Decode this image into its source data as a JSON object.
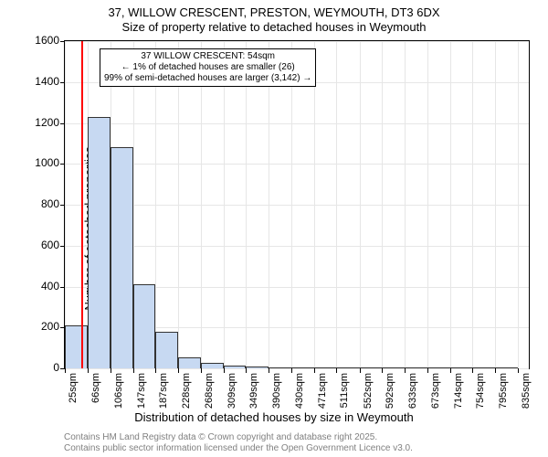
{
  "title": {
    "line1": "37, WILLOW CRESCENT, PRESTON, WEYMOUTH, DT3 6DX",
    "line2": "Size of property relative to detached houses in Weymouth"
  },
  "ylabel": "Number of detached properties",
  "xlabel": "Distribution of detached houses by size in Weymouth",
  "footer": {
    "line1": "Contains HM Land Registry data © Crown copyright and database right 2025.",
    "line2": "Contains public sector information licensed under the Open Government Licence v3.0."
  },
  "chart": {
    "type": "histogram",
    "xlim": [
      25,
      855
    ],
    "ylim": [
      0,
      1600
    ],
    "ytick_step": 200,
    "yticks": [
      0,
      200,
      400,
      600,
      800,
      1000,
      1200,
      1400,
      1600
    ],
    "xticks": [
      25,
      66,
      106,
      147,
      187,
      228,
      268,
      309,
      349,
      390,
      430,
      471,
      511,
      552,
      592,
      633,
      673,
      714,
      754,
      795,
      835
    ],
    "xtick_labels": [
      "25sqm",
      "66sqm",
      "106sqm",
      "147sqm",
      "187sqm",
      "228sqm",
      "268sqm",
      "309sqm",
      "349sqm",
      "390sqm",
      "430sqm",
      "471sqm",
      "511sqm",
      "552sqm",
      "592sqm",
      "633sqm",
      "673sqm",
      "714sqm",
      "754sqm",
      "795sqm",
      "835sqm"
    ],
    "bars": [
      {
        "x0": 25,
        "x1": 66,
        "y": 210
      },
      {
        "x0": 66,
        "x1": 106,
        "y": 1230
      },
      {
        "x0": 106,
        "x1": 147,
        "y": 1080
      },
      {
        "x0": 147,
        "x1": 187,
        "y": 410
      },
      {
        "x0": 187,
        "x1": 228,
        "y": 180
      },
      {
        "x0": 228,
        "x1": 268,
        "y": 55
      },
      {
        "x0": 268,
        "x1": 309,
        "y": 25
      },
      {
        "x0": 309,
        "x1": 349,
        "y": 15
      },
      {
        "x0": 349,
        "x1": 390,
        "y": 8
      },
      {
        "x0": 390,
        "x1": 430,
        "y": 4
      },
      {
        "x0": 430,
        "x1": 471,
        "y": 2
      },
      {
        "x0": 471,
        "x1": 511,
        "y": 2
      },
      {
        "x0": 511,
        "x1": 552,
        "y": 1
      },
      {
        "x0": 552,
        "x1": 592,
        "y": 1
      },
      {
        "x0": 592,
        "x1": 633,
        "y": 1
      },
      {
        "x0": 633,
        "x1": 673,
        "y": 0
      },
      {
        "x0": 673,
        "x1": 714,
        "y": 0
      },
      {
        "x0": 714,
        "x1": 754,
        "y": 0
      },
      {
        "x0": 754,
        "x1": 795,
        "y": 0
      },
      {
        "x0": 795,
        "x1": 835,
        "y": 1
      }
    ],
    "bar_fill": "#c7d9f2",
    "bar_stroke": "#333333",
    "grid_color": "#e6e6e6",
    "background": "#ffffff",
    "marker": {
      "x": 54,
      "color": "#ff0000"
    },
    "annotation": {
      "line1": "37 WILLOW CRESCENT: 54sqm",
      "line2": "← 1% of detached houses are smaller (26)",
      "line3": "99% of semi-detached houses are larger (3,142) →"
    }
  }
}
